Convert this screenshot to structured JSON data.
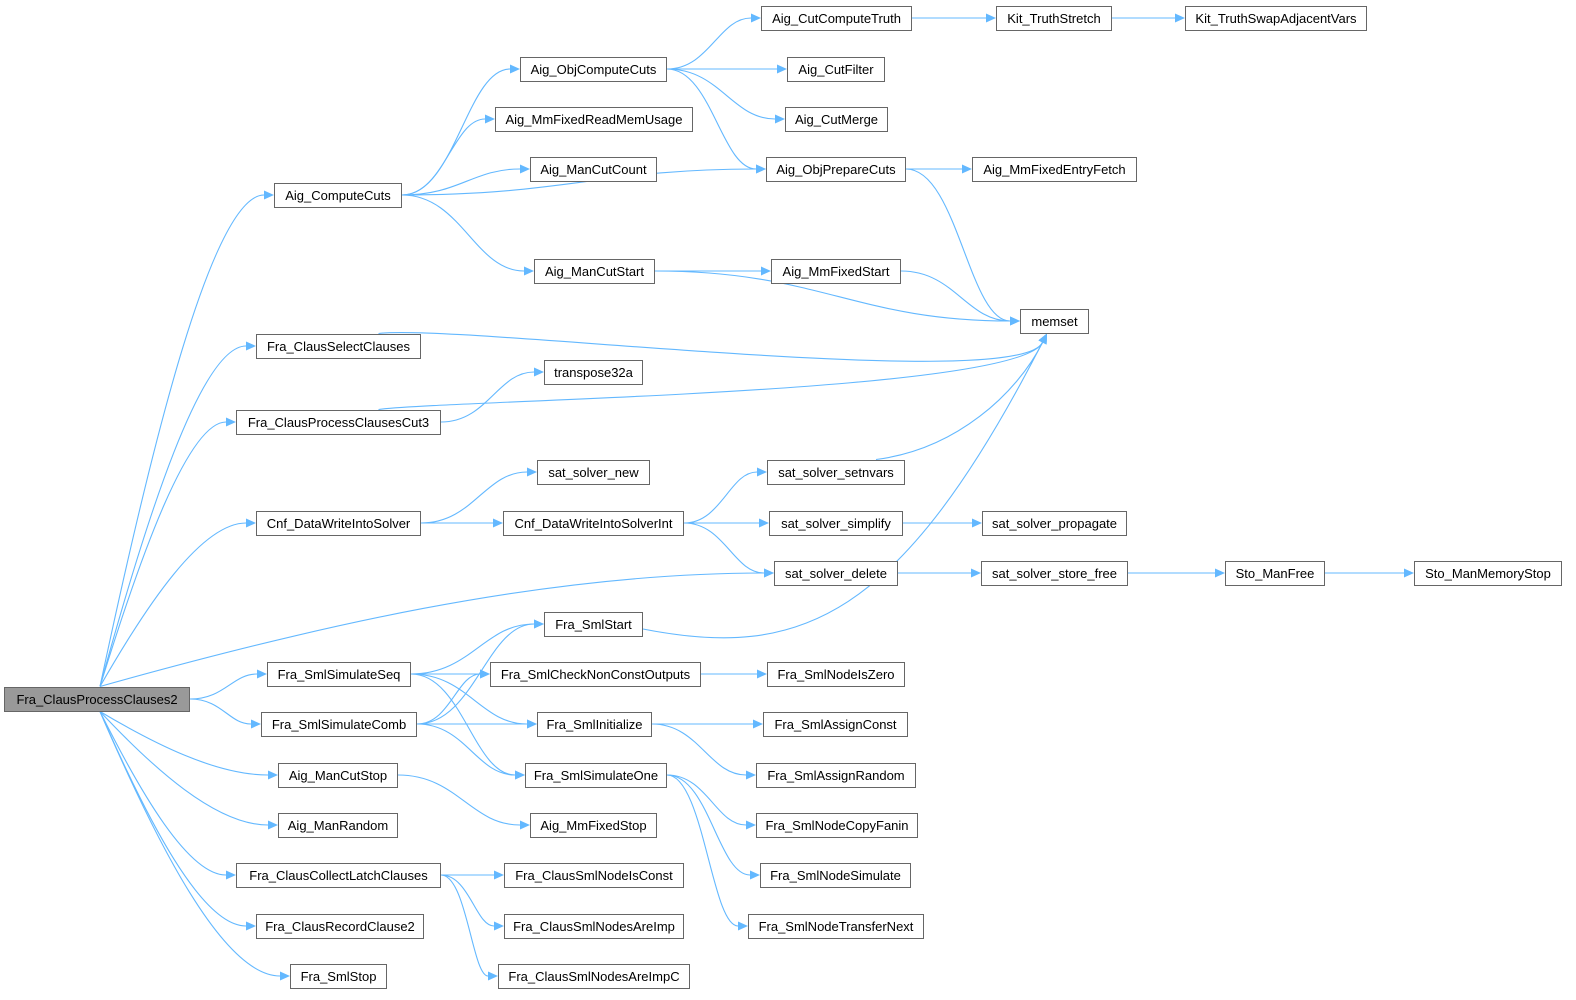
{
  "colors": {
    "edge": "#63b8ff",
    "border": "#666666",
    "root_fill": "#999999"
  },
  "nodes": {
    "root": "Fra_ClausProcessClauses2",
    "aigComputeCuts": "Aig_ComputeCuts",
    "selectClauses": "Fra_ClausSelectClauses",
    "cut3": "Fra_ClausProcessClausesCut3",
    "cnfWrite": "Cnf_DataWriteIntoSolver",
    "simSeq": "Fra_SmlSimulateSeq",
    "simComb": "Fra_SmlSimulateComb",
    "manCutStop": "Aig_ManCutStop",
    "manRandom": "Aig_ManRandom",
    "collectLatch": "Fra_ClausCollectLatchClauses",
    "recordClause2": "Fra_ClausRecordClause2",
    "smlStop": "Fra_SmlStop",
    "objComputeCuts": "Aig_ObjComputeCuts",
    "readMemUsage": "Aig_MmFixedReadMemUsage",
    "manCutCount": "Aig_ManCutCount",
    "manCutStart": "Aig_ManCutStart",
    "transpose": "transpose32a",
    "satNew": "sat_solver_new",
    "cnfWriteInt": "Cnf_DataWriteIntoSolverInt",
    "smlStart": "Fra_SmlStart",
    "checkNonConst": "Fra_SmlCheckNonConstOutputs",
    "smlInit": "Fra_SmlInitialize",
    "simOne": "Fra_SmlSimulateOne",
    "mmFixedStop": "Aig_MmFixedStop",
    "nodeIsConst": "Fra_ClausSmlNodeIsConst",
    "nodesAreImp": "Fra_ClausSmlNodesAreImp",
    "nodesAreImpC": "Fra_ClausSmlNodesAreImpC",
    "cutComputeTruth": "Aig_CutComputeTruth",
    "cutFilter": "Aig_CutFilter",
    "cutMerge": "Aig_CutMerge",
    "objPrepareCuts": "Aig_ObjPrepareCuts",
    "mmFixedStart": "Aig_MmFixedStart",
    "setnvars": "sat_solver_setnvars",
    "simplify": "sat_solver_simplify",
    "satDelete": "sat_solver_delete",
    "nodeIsZero": "Fra_SmlNodeIsZero",
    "assignConst": "Fra_SmlAssignConst",
    "assignRandom": "Fra_SmlAssignRandom",
    "copyFanin": "Fra_SmlNodeCopyFanin",
    "nodeSimulate": "Fra_SmlNodeSimulate",
    "transferNext": "Fra_SmlNodeTransferNext",
    "truthStretch": "Kit_TruthStretch",
    "entryFetch": "Aig_MmFixedEntryFetch",
    "memset": "memset",
    "propagate": "sat_solver_propagate",
    "storeFree": "sat_solver_store_free",
    "swapVars": "Kit_TruthSwapAdjacentVars",
    "stoManFree": "Sto_ManFree",
    "stoMemStop": "Sto_ManMemoryStop"
  },
  "edges": [
    [
      "root",
      "aigComputeCuts"
    ],
    [
      "root",
      "selectClauses"
    ],
    [
      "root",
      "cut3"
    ],
    [
      "root",
      "cnfWrite"
    ],
    [
      "root",
      "satDelete"
    ],
    [
      "root",
      "simSeq"
    ],
    [
      "root",
      "simComb"
    ],
    [
      "root",
      "manCutStop"
    ],
    [
      "root",
      "manRandom"
    ],
    [
      "root",
      "collectLatch"
    ],
    [
      "root",
      "recordClause2"
    ],
    [
      "root",
      "smlStop"
    ],
    [
      "aigComputeCuts",
      "objComputeCuts"
    ],
    [
      "aigComputeCuts",
      "readMemUsage"
    ],
    [
      "aigComputeCuts",
      "manCutCount"
    ],
    [
      "aigComputeCuts",
      "objPrepareCuts"
    ],
    [
      "aigComputeCuts",
      "manCutStart"
    ],
    [
      "objComputeCuts",
      "cutComputeTruth"
    ],
    [
      "objComputeCuts",
      "cutFilter"
    ],
    [
      "objComputeCuts",
      "cutMerge"
    ],
    [
      "objComputeCuts",
      "objPrepareCuts"
    ],
    [
      "cutComputeTruth",
      "truthStretch"
    ],
    [
      "truthStretch",
      "swapVars"
    ],
    [
      "objPrepareCuts",
      "entryFetch"
    ],
    [
      "objPrepareCuts",
      "memset"
    ],
    [
      "manCutStart",
      "memset"
    ],
    [
      "manCutStart",
      "mmFixedStart"
    ],
    [
      "mmFixedStart",
      "memset"
    ],
    [
      "selectClauses",
      "memset"
    ],
    [
      "cut3",
      "transpose"
    ],
    [
      "cut3",
      "memset"
    ],
    [
      "cnfWrite",
      "satNew"
    ],
    [
      "cnfWrite",
      "cnfWriteInt"
    ],
    [
      "cnfWriteInt",
      "setnvars"
    ],
    [
      "cnfWriteInt",
      "simplify"
    ],
    [
      "cnfWriteInt",
      "satDelete"
    ],
    [
      "setnvars",
      "memset"
    ],
    [
      "simplify",
      "propagate"
    ],
    [
      "satDelete",
      "storeFree"
    ],
    [
      "storeFree",
      "stoManFree"
    ],
    [
      "stoManFree",
      "stoMemStop"
    ],
    [
      "smlStart",
      "memset"
    ],
    [
      "simSeq",
      "smlStart"
    ],
    [
      "simSeq",
      "checkNonConst"
    ],
    [
      "simSeq",
      "smlInit"
    ],
    [
      "simSeq",
      "simOne"
    ],
    [
      "simComb",
      "smlStart"
    ],
    [
      "simComb",
      "checkNonConst"
    ],
    [
      "simComb",
      "smlInit"
    ],
    [
      "simComb",
      "simOne"
    ],
    [
      "checkNonConst",
      "nodeIsZero"
    ],
    [
      "smlInit",
      "assignConst"
    ],
    [
      "smlInit",
      "assignRandom"
    ],
    [
      "simOne",
      "copyFanin"
    ],
    [
      "simOne",
      "nodeSimulate"
    ],
    [
      "simOne",
      "transferNext"
    ],
    [
      "manCutStop",
      "mmFixedStop"
    ],
    [
      "collectLatch",
      "nodeIsConst"
    ],
    [
      "collectLatch",
      "nodesAreImp"
    ],
    [
      "collectLatch",
      "nodesAreImpC"
    ]
  ]
}
